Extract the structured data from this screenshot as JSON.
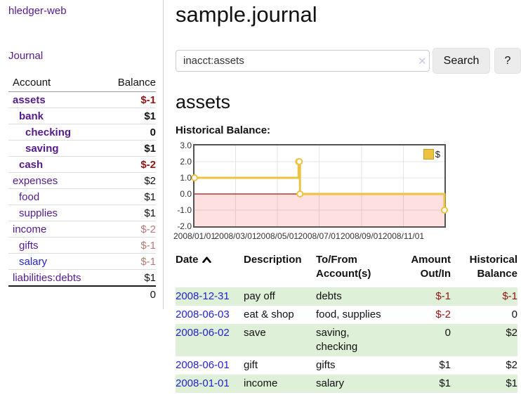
{
  "app": {
    "title": "hledger-web"
  },
  "sidebar": {
    "journal_link": "Journal",
    "table": {
      "account_header": "Account",
      "balance_header": "Balance",
      "accounts": [
        {
          "name": "assets",
          "balance": "$-1",
          "depth": 1,
          "bold": true,
          "neg": "strong",
          "link": "visited"
        },
        {
          "name": "bank",
          "balance": "$1",
          "depth": 2,
          "bold": true,
          "neg": null,
          "link": "visited"
        },
        {
          "name": "checking",
          "balance": "0",
          "depth": 3,
          "bold": true,
          "neg": null,
          "link": "visited"
        },
        {
          "name": "saving",
          "balance": "$1",
          "depth": 3,
          "bold": true,
          "neg": null,
          "link": "visited"
        },
        {
          "name": "cash",
          "balance": "$-2",
          "depth": 2,
          "bold": true,
          "neg": "strong",
          "link": "visited"
        },
        {
          "name": "expenses",
          "balance": "$2",
          "depth": 1,
          "bold": false,
          "neg": null,
          "link": "visited"
        },
        {
          "name": "food",
          "balance": "$1",
          "depth": 2,
          "bold": false,
          "neg": null,
          "link": "visited"
        },
        {
          "name": "supplies",
          "balance": "$1",
          "depth": 2,
          "bold": false,
          "neg": null,
          "link": "visited"
        },
        {
          "name": "income",
          "balance": "$-2",
          "depth": 1,
          "bold": false,
          "neg": "soft",
          "link": "visited"
        },
        {
          "name": "gifts",
          "balance": "$-1",
          "depth": 2,
          "bold": false,
          "neg": "soft",
          "link": "visited"
        },
        {
          "name": "salary",
          "balance": "$-1",
          "depth": 2,
          "bold": false,
          "neg": "soft",
          "link": "unvisited"
        },
        {
          "name": "liabilities:debts",
          "balance": "$1",
          "depth": 1,
          "bold": false,
          "neg": null,
          "link": "visited"
        }
      ],
      "total": "0"
    }
  },
  "header": {
    "title": "sample.journal"
  },
  "search": {
    "value": "inacct:assets",
    "clear_icon": "✕",
    "button_label": "Search",
    "help_label": "?"
  },
  "account_page": {
    "heading": "assets",
    "chart_label": "Historical Balance:"
  },
  "chart_data": {
    "type": "line",
    "title": "Historical Balance",
    "step": true,
    "legend_position": "top-right",
    "series": [
      {
        "name": "$",
        "color": "#edc240",
        "points": [
          [
            "2008-01-01",
            1
          ],
          [
            "2008-06-01",
            2
          ],
          [
            "2008-06-02",
            2
          ],
          [
            "2008-06-03",
            0
          ],
          [
            "2008-12-31",
            -1
          ]
        ]
      }
    ],
    "xlim": [
      "2008-01-01",
      "2008-12-31"
    ],
    "ylim": [
      -2,
      3
    ],
    "yticks": [
      "3.0",
      "2.0",
      "1.0",
      "0.0",
      "-1.0",
      "-2.0"
    ],
    "ytick_values": [
      3,
      2,
      1,
      0,
      -1,
      -2
    ],
    "xticks": [
      "2008/01/01",
      "2008/03/01",
      "2008/05/01",
      "2008/07/01",
      "2008/09/01",
      "2008/11/01"
    ],
    "grid": true,
    "negative_region_fill": "rgba(255,0,0,0.12)",
    "zero_line_color": "#a01515"
  },
  "transactions": {
    "headers": {
      "date": "Date",
      "description": "Description",
      "accounts": "To/From Account(s)",
      "amount": "Amount Out/In",
      "balance": "Historical Balance"
    },
    "rows": [
      {
        "date": "2008-12-31",
        "description": "pay off",
        "accounts": "debts",
        "amount": "$-1",
        "amount_neg": true,
        "balance": "$-1",
        "balance_neg": true
      },
      {
        "date": "2008-06-03",
        "description": "eat & shop",
        "accounts": "food, supplies",
        "amount": "$-2",
        "amount_neg": true,
        "balance": "0",
        "balance_neg": false
      },
      {
        "date": "2008-06-02",
        "description": "save",
        "accounts": "saving, checking",
        "amount": "0",
        "amount_neg": false,
        "balance": "$2",
        "balance_neg": false
      },
      {
        "date": "2008-06-01",
        "description": "gift",
        "accounts": "gifts",
        "amount": "$1",
        "amount_neg": false,
        "balance": "$2",
        "balance_neg": false
      },
      {
        "date": "2008-01-01",
        "description": "income",
        "accounts": "salary",
        "amount": "$1",
        "amount_neg": false,
        "balance": "$1",
        "balance_neg": false
      }
    ]
  }
}
